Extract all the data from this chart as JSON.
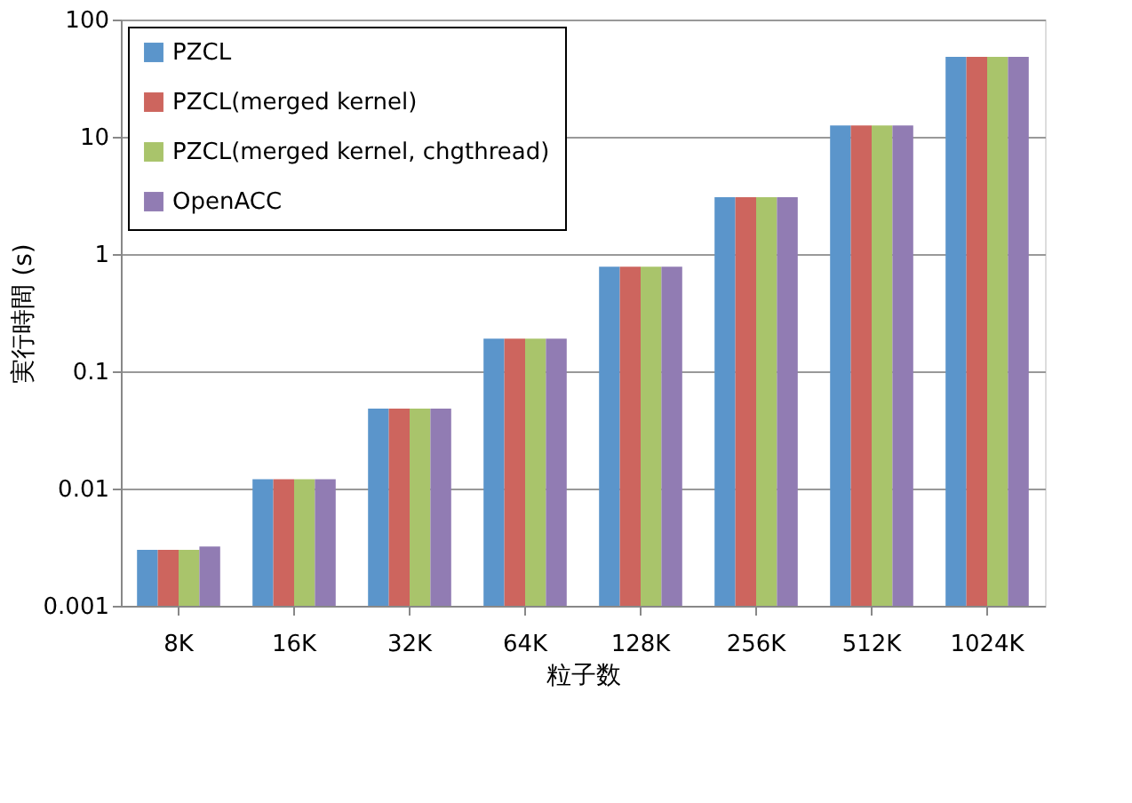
{
  "chart_data": {
    "type": "bar",
    "xlabel": "粒子数",
    "ylabel": "実行時間 (s)",
    "categories": [
      "8K",
      "16K",
      "32K",
      "64K",
      "128K",
      "256K",
      "512K",
      "1024K"
    ],
    "series": [
      {
        "name": "PZCL",
        "color": "#5b95cb",
        "values": [
          0.003,
          0.012,
          0.048,
          0.19,
          0.78,
          3.06,
          12.5,
          48
        ]
      },
      {
        "name": "PZCL(merged kernel)",
        "color": "#cd655e",
        "values": [
          0.003,
          0.012,
          0.048,
          0.19,
          0.78,
          3.06,
          12.5,
          48
        ]
      },
      {
        "name": "PZCL(merged kernel, chgthread)",
        "color": "#a9c46b",
        "values": [
          0.003,
          0.012,
          0.048,
          0.19,
          0.78,
          3.06,
          12.5,
          48
        ]
      },
      {
        "name": "OpenACC",
        "color": "#917cb3",
        "values": [
          0.0032,
          0.012,
          0.048,
          0.19,
          0.78,
          3.06,
          12.5,
          48
        ]
      }
    ],
    "log": true,
    "ylim": [
      0.001,
      100
    ],
    "yticks": [
      0.001,
      0.01,
      0.1,
      1,
      10,
      100
    ],
    "grid": "y",
    "legend": "top left"
  }
}
